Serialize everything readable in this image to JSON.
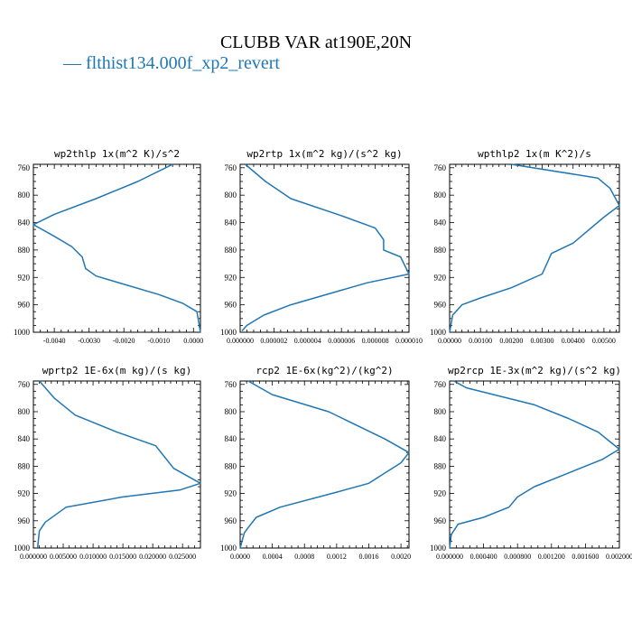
{
  "title": "CLUBB VAR at190E,20N",
  "legend": {
    "dash": "—",
    "label": "flthist134.000f_xp2_revert",
    "color": "#1f77b4"
  },
  "chart_data": [
    {
      "type": "line",
      "title": "wp2thlp  1x(m^2 K)/s^2",
      "xlim": [
        -0.0046,
        0.0002
      ],
      "ylim": [
        1000,
        755
      ],
      "xticks": [
        -0.004,
        -0.003,
        -0.002,
        -0.001,
        0.0
      ],
      "xtick_labels": [
        "-0.0040",
        "-0.0030",
        "-0.0020",
        "-0.0010",
        "0.0000"
      ],
      "yticks": [
        760,
        800,
        840,
        880,
        920,
        960,
        1000
      ],
      "ytick_labels": [
        "760",
        "800",
        "840",
        "880",
        "920",
        "960",
        "1000"
      ],
      "series": [
        {
          "x": [
            -0.0006,
            -0.0008,
            -0.0016,
            -0.0028,
            -0.004,
            -0.0046,
            -0.004,
            -0.0035,
            -0.0032,
            -0.0031,
            -0.0028,
            -0.001,
            -0.0003,
            0.0001,
            0.0002
          ],
          "y": [
            755,
            760,
            780,
            805,
            828,
            843,
            860,
            875,
            890,
            907,
            918,
            945,
            958,
            970,
            1000
          ]
        }
      ]
    },
    {
      "type": "line",
      "title": "wp2rtp  1x(m^2 kg)/(s^2 kg)",
      "xlim": [
        0.0,
        1e-05
      ],
      "ylim": [
        1000,
        755
      ],
      "xticks": [
        0.0,
        2e-06,
        4e-06,
        6e-06,
        8e-06,
        1e-05
      ],
      "xtick_labels": [
        "0.000000",
        "0.000002",
        "0.000004",
        "0.000006",
        "0.000008",
        "0.000010"
      ],
      "yticks": [
        760,
        800,
        840,
        880,
        920,
        960,
        1000
      ],
      "ytick_labels": [
        "760",
        "800",
        "840",
        "880",
        "920",
        "960",
        "1000"
      ],
      "series": [
        {
          "x": [
            3e-07,
            1.5e-06,
            3e-06,
            6e-06,
            8e-06,
            8.5e-06,
            8.5e-06,
            9.5e-06,
            1e-05,
            7.5e-06,
            3e-06,
            1.4e-06,
            4e-07,
            1e-07
          ],
          "y": [
            755,
            780,
            805,
            830,
            848,
            865,
            880,
            890,
            915,
            928,
            960,
            975,
            990,
            998
          ]
        }
      ]
    },
    {
      "type": "line",
      "title": "wpthlp2  1x(m K^2)/s",
      "xlim": [
        0.0,
        0.0055
      ],
      "ylim": [
        1000,
        755
      ],
      "xticks": [
        0.0,
        0.001,
        0.002,
        0.003,
        0.004,
        0.005
      ],
      "xtick_labels": [
        "0.00000",
        "0.00100",
        "0.00200",
        "0.00300",
        "0.00400",
        "0.00500"
      ],
      "yticks": [
        760,
        800,
        840,
        880,
        920,
        960,
        1000
      ],
      "ytick_labels": [
        "760",
        "800",
        "840",
        "880",
        "920",
        "960",
        "1000"
      ],
      "series": [
        {
          "x": [
            0.002,
            0.0048,
            0.0052,
            0.0055,
            0.005,
            0.004,
            0.0033,
            0.003,
            0.002,
            0.001,
            0.0004,
            0.0001,
            0.0
          ],
          "y": [
            755,
            775,
            790,
            815,
            832,
            870,
            885,
            915,
            935,
            950,
            960,
            975,
            1000
          ]
        }
      ]
    },
    {
      "type": "line",
      "title": "wprtp2  1E-6x(m kg)/(s kg)",
      "xlim": [
        0.0,
        0.028
      ],
      "ylim": [
        1000,
        755
      ],
      "xticks": [
        0.0,
        0.005,
        0.01,
        0.015,
        0.02,
        0.025
      ],
      "xtick_labels": [
        "0.000000",
        "0.005000",
        "0.010000",
        "0.015000",
        "0.020000",
        "0.025000"
      ],
      "yticks": [
        760,
        800,
        840,
        880,
        920,
        960,
        1000
      ],
      "ytick_labels": [
        "760",
        "800",
        "840",
        "880",
        "920",
        "960",
        "1000"
      ],
      "series": [
        {
          "x": [
            0.001,
            0.0035,
            0.007,
            0.014,
            0.0205,
            0.0235,
            0.028,
            0.0245,
            0.015,
            0.0055,
            0.002,
            0.001,
            0.0007
          ],
          "y": [
            755,
            780,
            805,
            830,
            850,
            883,
            905,
            915,
            925,
            940,
            962,
            975,
            1000
          ]
        }
      ]
    },
    {
      "type": "line",
      "title": "rcp2  1E-6x(kg^2)/(kg^2)",
      "xlim": [
        0.0,
        0.0021
      ],
      "ylim": [
        1000,
        755
      ],
      "xticks": [
        0.0,
        0.0004,
        0.0008,
        0.0012,
        0.0016,
        0.002
      ],
      "xtick_labels": [
        "0.0000",
        "0.0004",
        "0.0008",
        "0.0012",
        "0.0016",
        "0.0020"
      ],
      "yticks": [
        760,
        800,
        840,
        880,
        920,
        960,
        1000
      ],
      "ytick_labels": [
        "760",
        "800",
        "840",
        "880",
        "920",
        "960",
        "1000"
      ],
      "series": [
        {
          "x": [
            0.0001,
            0.0004,
            0.0011,
            0.0018,
            0.0021,
            0.002,
            0.0018,
            0.0016,
            0.0012,
            0.0005,
            0.0002,
            0.0001,
            5e-05,
            0.0
          ],
          "y": [
            755,
            775,
            800,
            840,
            860,
            875,
            890,
            905,
            918,
            940,
            955,
            970,
            978,
            1000
          ]
        }
      ]
    },
    {
      "type": "line",
      "title": "wp2rcp  1E-3x(m^2 kg)/(s^2 kg)",
      "xlim": [
        0.0,
        0.002
      ],
      "ylim": [
        1000,
        755
      ],
      "xticks": [
        0.0,
        0.0004,
        0.0008,
        0.0012,
        0.0016,
        0.002
      ],
      "xtick_labels": [
        "0.000000",
        "0.000400",
        "0.000800",
        "0.001200",
        "0.001600",
        "0.002000"
      ],
      "yticks": [
        760,
        800,
        840,
        880,
        920,
        960,
        1000
      ],
      "ytick_labels": [
        "760",
        "800",
        "840",
        "880",
        "920",
        "960",
        "1000"
      ],
      "series": [
        {
          "x": [
            5e-05,
            0.0002,
            0.001,
            0.0014,
            0.00175,
            0.0019,
            0.002,
            0.0018,
            0.0014,
            0.001,
            0.0008,
            0.0007,
            0.0004,
            0.0001,
            2e-05,
            0.0
          ],
          "y": [
            755,
            765,
            790,
            810,
            830,
            845,
            855,
            870,
            890,
            910,
            925,
            940,
            955,
            965,
            980,
            1000
          ]
        }
      ]
    }
  ]
}
